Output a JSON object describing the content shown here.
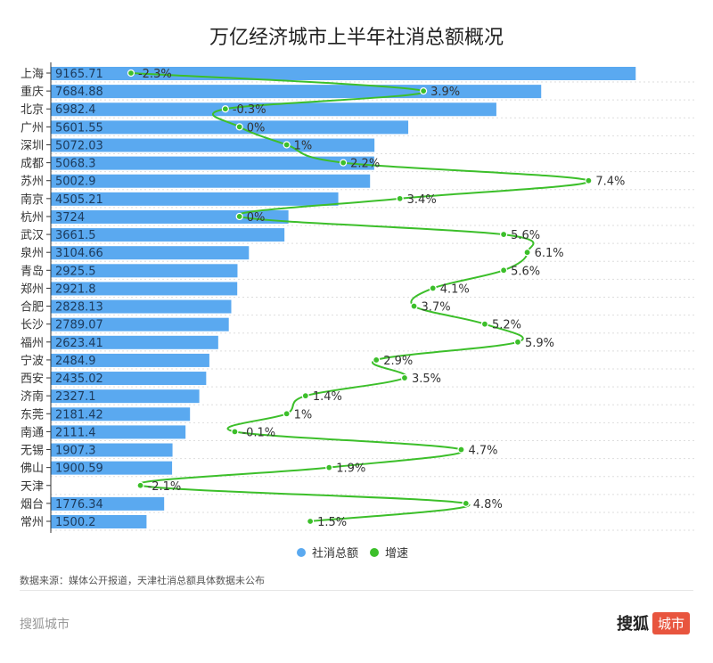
{
  "chart_data": {
    "type": "bar+line",
    "title": "万亿经济城市上半年社消总额概况",
    "categories": [
      "上海",
      "重庆",
      "北京",
      "广州",
      "深圳",
      "成都",
      "苏州",
      "南京",
      "杭州",
      "武汉",
      "泉州",
      "青岛",
      "郑州",
      "合肥",
      "长沙",
      "福州",
      "宁波",
      "西安",
      "济南",
      "东莞",
      "南通",
      "无锡",
      "佛山",
      "天津",
      "烟台",
      "常州"
    ],
    "series": [
      {
        "name": "社消总额",
        "type": "bar",
        "color": "#5aa9f0",
        "values": [
          9165.71,
          7684.88,
          6982.4,
          5601.55,
          5072.03,
          5068.3,
          5002.9,
          4505.21,
          3724,
          3661.5,
          3104.66,
          2925.5,
          2921.8,
          2828.13,
          2789.07,
          2623.41,
          2484.9,
          2435.02,
          2327.1,
          2181.42,
          2111.4,
          1907.3,
          1900.59,
          null,
          1776.34,
          1500.2
        ],
        "labels": [
          "9165.71",
          "7684.88",
          "6982.4",
          "5601.55",
          "5072.03",
          "5068.3",
          "5002.9",
          "4505.21",
          "3724",
          "3661.5",
          "3104.66",
          "2925.5",
          "2921.8",
          "2828.13",
          "2789.07",
          "2623.41",
          "2484.9",
          "2435.02",
          "2327.1",
          "2181.42",
          "2111.4",
          "1907.3",
          "1900.59",
          "",
          "1776.34",
          "1500.2"
        ]
      },
      {
        "name": "增速",
        "type": "line",
        "color": "#3cbf2a",
        "values": [
          -2.3,
          3.9,
          -0.3,
          0,
          1,
          2.2,
          7.4,
          3.4,
          0,
          5.6,
          6.1,
          5.6,
          4.1,
          3.7,
          5.2,
          5.9,
          2.9,
          3.5,
          1.4,
          1,
          -0.1,
          4.7,
          1.9,
          -2.1,
          4.8,
          1.5
        ],
        "labels": [
          "-2.3%",
          "3.9%",
          "-0.3%",
          "0%",
          "1%",
          "2.2%",
          "7.4%",
          "3.4%",
          "0%",
          "5.6%",
          "6.1%",
          "5.6%",
          "4.1%",
          "3.7%",
          "5.2%",
          "5.9%",
          "2.9%",
          "3.5%",
          "1.4%",
          "1%",
          "-0.1%",
          "4.7%",
          "1.9%",
          "-2.1%",
          "4.8%",
          "1.5%"
        ]
      }
    ],
    "bar_axis_range": [
      0,
      10000
    ],
    "line_axis_range": [
      -4,
      9.66
    ],
    "grid": true,
    "legend": "bottom"
  },
  "source": "数据来源：媒体公开报道，天津社消总额具体数据未公布",
  "footer": {
    "left": "搜狐城市",
    "brand": "搜狐",
    "badge": "城市"
  }
}
